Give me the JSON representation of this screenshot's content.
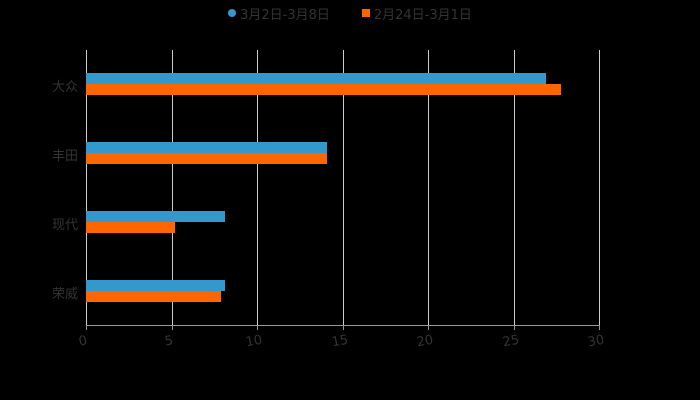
{
  "chart_data": {
    "type": "bar",
    "orientation": "horizontal",
    "title": "",
    "xlabel": "",
    "ylabel": "",
    "categories": [
      "大众",
      "丰田",
      "现代",
      "荣威"
    ],
    "series": [
      {
        "name": "3月2日-3月8日",
        "color": "#3399cc",
        "values": [
          26.9,
          14.1,
          8.1,
          8.1
        ]
      },
      {
        "name": "2月24日-3月1日",
        "color": "#ff6600",
        "values": [
          27.8,
          14.1,
          5.2,
          7.9
        ]
      }
    ],
    "xlim": [
      0,
      30
    ],
    "xticks": [
      "0",
      "5",
      "10",
      "15",
      "20",
      "25",
      "30"
    ],
    "grid": true,
    "legend_position": "top"
  },
  "legend": {
    "items": [
      {
        "label": "3月2日-3月8日",
        "color": "#3399cc",
        "marker": "circle"
      },
      {
        "label": "2月24日-3月1日",
        "color": "#ff6600",
        "marker": "square"
      }
    ]
  }
}
